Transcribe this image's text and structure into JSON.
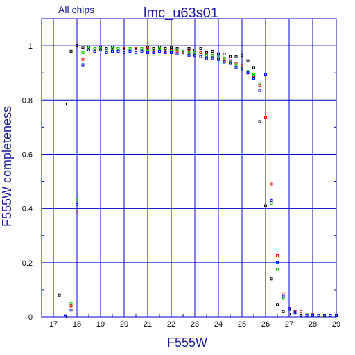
{
  "chart_data": {
    "type": "scatter",
    "title": "lmc_u63s01",
    "subtitle": "All chips",
    "xlabel": "F555W",
    "ylabel": "F555W completeness",
    "xlim": [
      16.5,
      29
    ],
    "ylim": [
      0,
      1.1
    ],
    "x_ticks": [
      "17",
      "18",
      "19",
      "20",
      "21",
      "22",
      "23",
      "24",
      "25",
      "26",
      "27",
      "28",
      "29"
    ],
    "y_ticks": [
      "0",
      "0.2",
      "0.4",
      "0.6",
      "0.8",
      "1"
    ],
    "grid": true,
    "colors": {
      "frame": "#0000cc",
      "grid": "#0000cc",
      "label": "#1a1aa6"
    },
    "series": [
      {
        "color": "#000000",
        "points": [
          [
            17.25,
            0.08
          ],
          [
            17.5,
            0.785
          ],
          [
            17.75,
            0.98
          ],
          [
            18.0,
            1.0
          ],
          [
            18.25,
            0.995
          ],
          [
            18.5,
            0.995
          ],
          [
            18.75,
            0.99
          ],
          [
            19.0,
            0.995
          ],
          [
            19.25,
            0.99
          ],
          [
            19.5,
            0.995
          ],
          [
            19.75,
            0.99
          ],
          [
            20.0,
            0.995
          ],
          [
            20.25,
            0.99
          ],
          [
            20.5,
            0.995
          ],
          [
            20.75,
            0.99
          ],
          [
            21.0,
            0.995
          ],
          [
            21.25,
            0.99
          ],
          [
            21.5,
            0.995
          ],
          [
            21.75,
            0.99
          ],
          [
            22.0,
            0.995
          ],
          [
            22.25,
            0.99
          ],
          [
            22.5,
            0.985
          ],
          [
            22.75,
            0.99
          ],
          [
            23.0,
            0.985
          ],
          [
            23.25,
            0.99
          ],
          [
            23.5,
            0.975
          ],
          [
            23.75,
            0.98
          ],
          [
            24.0,
            0.97
          ],
          [
            24.25,
            0.97
          ],
          [
            24.5,
            0.96
          ],
          [
            24.75,
            0.96
          ],
          [
            25.0,
            0.965
          ],
          [
            25.25,
            0.945
          ],
          [
            25.5,
            0.92
          ],
          [
            25.75,
            0.72
          ],
          [
            26.0,
            0.41
          ],
          [
            26.25,
            0.14
          ],
          [
            26.5,
            0.045
          ],
          [
            26.75,
            0.02
          ],
          [
            27.0,
            0.01
          ],
          [
            27.25,
            0.02
          ],
          [
            27.5,
            0.005
          ],
          [
            27.75,
            0.01
          ],
          [
            28.0,
            0.005
          ],
          [
            28.25,
            0.005
          ],
          [
            28.5,
            0.005
          ],
          [
            28.75,
            0.005
          ],
          [
            29.0,
            0.005
          ]
        ]
      },
      {
        "color": "#ff0000",
        "points": [
          [
            17.75,
            0.04
          ],
          [
            18.0,
            0.385
          ],
          [
            18.25,
            0.95
          ],
          [
            18.5,
            0.99
          ],
          [
            18.75,
            0.985
          ],
          [
            19.0,
            0.99
          ],
          [
            19.25,
            0.985
          ],
          [
            19.5,
            0.99
          ],
          [
            19.75,
            0.985
          ],
          [
            20.0,
            0.99
          ],
          [
            20.25,
            0.985
          ],
          [
            20.5,
            0.99
          ],
          [
            20.75,
            0.985
          ],
          [
            21.0,
            0.99
          ],
          [
            21.25,
            0.98
          ],
          [
            21.5,
            0.985
          ],
          [
            21.75,
            0.98
          ],
          [
            22.0,
            0.985
          ],
          [
            22.25,
            0.98
          ],
          [
            22.5,
            0.975
          ],
          [
            22.75,
            0.98
          ],
          [
            23.0,
            0.975
          ],
          [
            23.25,
            0.975
          ],
          [
            23.5,
            0.97
          ],
          [
            23.75,
            0.965
          ],
          [
            24.0,
            0.96
          ],
          [
            24.25,
            0.95
          ],
          [
            24.5,
            0.945
          ],
          [
            24.75,
            0.935
          ],
          [
            25.0,
            0.925
          ],
          [
            25.25,
            0.9
          ],
          [
            25.5,
            0.89
          ],
          [
            25.75,
            0.855
          ],
          [
            26.0,
            0.735
          ],
          [
            26.25,
            0.49
          ],
          [
            26.5,
            0.225
          ],
          [
            26.75,
            0.085
          ],
          [
            27.0,
            0.03
          ],
          [
            27.25,
            0.02
          ],
          [
            27.5,
            0.02
          ],
          [
            27.75,
            0.01
          ],
          [
            28.0,
            0.01
          ],
          [
            28.25,
            0.005
          ],
          [
            28.5,
            0.005
          ],
          [
            28.75,
            0.005
          ]
        ]
      },
      {
        "color": "#00cc00",
        "points": [
          [
            17.75,
            0.05
          ],
          [
            18.0,
            0.43
          ],
          [
            18.25,
            0.975
          ],
          [
            18.5,
            0.99
          ],
          [
            18.75,
            0.99
          ],
          [
            19.0,
            0.99
          ],
          [
            19.25,
            0.985
          ],
          [
            19.5,
            0.99
          ],
          [
            19.75,
            0.99
          ],
          [
            20.0,
            0.985
          ],
          [
            20.25,
            0.99
          ],
          [
            20.5,
            0.985
          ],
          [
            20.75,
            0.99
          ],
          [
            21.0,
            0.985
          ],
          [
            21.25,
            0.985
          ],
          [
            21.5,
            0.99
          ],
          [
            21.75,
            0.985
          ],
          [
            22.0,
            0.98
          ],
          [
            22.25,
            0.985
          ],
          [
            22.5,
            0.98
          ],
          [
            22.75,
            0.975
          ],
          [
            23.0,
            0.975
          ],
          [
            23.25,
            0.97
          ],
          [
            23.5,
            0.965
          ],
          [
            23.75,
            0.965
          ],
          [
            24.0,
            0.96
          ],
          [
            24.25,
            0.955
          ],
          [
            24.5,
            0.94
          ],
          [
            24.75,
            0.93
          ],
          [
            25.0,
            0.92
          ],
          [
            25.25,
            0.905
          ],
          [
            25.5,
            0.895
          ],
          [
            25.75,
            0.86
          ],
          [
            26.0,
            0.895
          ],
          [
            26.25,
            0.42
          ],
          [
            26.5,
            0.175
          ],
          [
            26.75,
            0.07
          ],
          [
            27.0,
            0.025
          ],
          [
            27.25,
            0.015
          ],
          [
            27.5,
            0.01
          ],
          [
            27.75,
            0.01
          ],
          [
            28.0,
            0.005
          ],
          [
            28.25,
            0.005
          ],
          [
            28.5,
            0.005
          ],
          [
            28.75,
            0.005
          ]
        ]
      },
      {
        "color": "#0000ff",
        "points": [
          [
            17.5,
            0.0
          ],
          [
            17.75,
            0.025
          ],
          [
            18.0,
            0.415
          ],
          [
            18.25,
            0.93
          ],
          [
            18.5,
            0.985
          ],
          [
            18.75,
            0.98
          ],
          [
            19.0,
            0.985
          ],
          [
            19.25,
            0.975
          ],
          [
            19.5,
            0.98
          ],
          [
            19.75,
            0.98
          ],
          [
            20.0,
            0.975
          ],
          [
            20.25,
            0.98
          ],
          [
            20.5,
            0.975
          ],
          [
            20.75,
            0.98
          ],
          [
            21.0,
            0.975
          ],
          [
            21.25,
            0.975
          ],
          [
            21.5,
            0.98
          ],
          [
            21.75,
            0.975
          ],
          [
            22.0,
            0.975
          ],
          [
            22.25,
            0.97
          ],
          [
            22.5,
            0.97
          ],
          [
            22.75,
            0.965
          ],
          [
            23.0,
            0.965
          ],
          [
            23.25,
            0.96
          ],
          [
            23.5,
            0.955
          ],
          [
            23.75,
            0.955
          ],
          [
            24.0,
            0.95
          ],
          [
            24.25,
            0.94
          ],
          [
            24.5,
            0.935
          ],
          [
            24.75,
            0.92
          ],
          [
            25.0,
            0.915
          ],
          [
            25.25,
            0.9
          ],
          [
            25.5,
            0.88
          ],
          [
            25.75,
            0.835
          ],
          [
            26.0,
            0.895
          ],
          [
            26.25,
            0.43
          ],
          [
            26.5,
            0.2
          ],
          [
            26.75,
            0.075
          ],
          [
            27.0,
            0.03
          ],
          [
            27.25,
            0.015
          ],
          [
            27.5,
            0.01
          ],
          [
            27.75,
            0.005
          ],
          [
            28.0,
            0.005
          ],
          [
            28.25,
            0.005
          ],
          [
            28.5,
            0.005
          ],
          [
            28.75,
            0.005
          ],
          [
            29.0,
            0.005
          ]
        ]
      }
    ]
  }
}
